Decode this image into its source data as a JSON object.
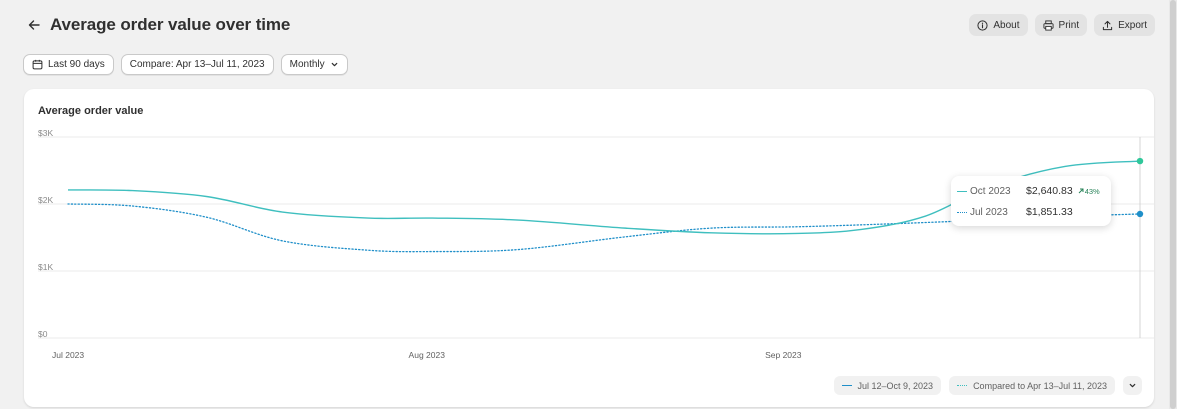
{
  "header": {
    "title": "Average order value over time",
    "about_label": "About",
    "print_label": "Print",
    "export_label": "Export"
  },
  "filters": {
    "date_range": "Last 90 days",
    "compare": "Compare: Apr 13–Jul 11, 2023",
    "granularity": "Monthly"
  },
  "card": {
    "title": "Average order value"
  },
  "tooltip": {
    "current_label": "Oct 2023",
    "current_value": "$2,640.83",
    "change": "43%",
    "previous_label": "Jul 2023",
    "previous_value": "$1,851.33"
  },
  "legend": {
    "current": "Jul 12–Oct 9, 2023",
    "previous": "Compared to Apr 13–Jul 11, 2023"
  },
  "colors": {
    "current": "#3fbfbf",
    "current_point": "#2fc79a",
    "previous": "#1f8fc9",
    "grid": "#ebebeb"
  },
  "chart_data": {
    "type": "line",
    "title": "Average order value",
    "y_ticks": [
      "$0",
      "$1K",
      "$2K",
      "$3K"
    ],
    "ylim": [
      0,
      3000
    ],
    "x_tick_labels": [
      "Jul 2023",
      "Aug 2023",
      "Sep 2023"
    ],
    "grid": true,
    "legend_placement": "bottom-right",
    "series": [
      {
        "name": "Jul 12–Oct 9, 2023",
        "style": "solid",
        "points": [
          {
            "t": 0,
            "y": 2210
          },
          {
            "t": 0.06,
            "y": 2200
          },
          {
            "t": 0.13,
            "y": 2110
          },
          {
            "t": 0.2,
            "y": 1880
          },
          {
            "t": 0.28,
            "y": 1790
          },
          {
            "t": 0.34,
            "y": 1790
          },
          {
            "t": 0.42,
            "y": 1760
          },
          {
            "t": 0.52,
            "y": 1640
          },
          {
            "t": 0.6,
            "y": 1570
          },
          {
            "t": 0.68,
            "y": 1560
          },
          {
            "t": 0.74,
            "y": 1620
          },
          {
            "t": 0.8,
            "y": 1820
          },
          {
            "t": 0.86,
            "y": 2260
          },
          {
            "t": 0.93,
            "y": 2560
          },
          {
            "t": 1.0,
            "y": 2640.83
          }
        ]
      },
      {
        "name": "Compared to Apr 13–Jul 11, 2023",
        "style": "dotted",
        "points": [
          {
            "t": 0,
            "y": 2000
          },
          {
            "t": 0.06,
            "y": 1970
          },
          {
            "t": 0.13,
            "y": 1800
          },
          {
            "t": 0.2,
            "y": 1450
          },
          {
            "t": 0.28,
            "y": 1310
          },
          {
            "t": 0.34,
            "y": 1290
          },
          {
            "t": 0.42,
            "y": 1320
          },
          {
            "t": 0.52,
            "y": 1510
          },
          {
            "t": 0.6,
            "y": 1640
          },
          {
            "t": 0.68,
            "y": 1660
          },
          {
            "t": 0.76,
            "y": 1700
          },
          {
            "t": 0.84,
            "y": 1750
          },
          {
            "t": 0.92,
            "y": 1810
          },
          {
            "t": 1.0,
            "y": 1851.33
          }
        ]
      }
    ]
  }
}
